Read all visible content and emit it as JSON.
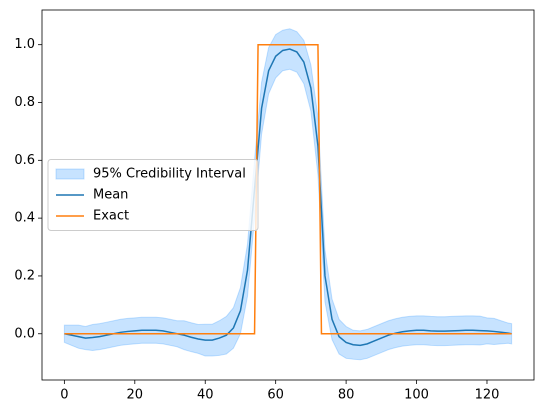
{
  "chart_data": {
    "type": "line",
    "xlim": [
      -6.35,
      133.35
    ],
    "ylim": [
      -0.16,
      1.12
    ],
    "xticks": [
      0,
      20,
      40,
      60,
      80,
      100,
      120
    ],
    "yticks": [
      {
        "value": 0,
        "label": "0.0"
      },
      0.2,
      0.4,
      0.6,
      0.8,
      {
        "value": 1,
        "label": "1.0"
      }
    ],
    "grid": false,
    "legend": "center left",
    "series": [
      {
        "name": "95% Credibility Interval",
        "type": "band",
        "color": "#1e90ff",
        "alpha": 0.25,
        "x": [
          0,
          2,
          4,
          6,
          8,
          10,
          12,
          14,
          16,
          18,
          20,
          22,
          24,
          26,
          28,
          30,
          32,
          34,
          36,
          38,
          40,
          42,
          44,
          46,
          48,
          50,
          52,
          54,
          56,
          58,
          60,
          62,
          64,
          66,
          68,
          70,
          72,
          74,
          76,
          78,
          80,
          82,
          84,
          86,
          88,
          90,
          92,
          94,
          96,
          98,
          100,
          102,
          104,
          106,
          108,
          110,
          112,
          114,
          116,
          118,
          120,
          122,
          124,
          126,
          127
        ],
        "upper": [
          0.03,
          0.03,
          0.03,
          0.025,
          0.032,
          0.035,
          0.04,
          0.045,
          0.05,
          0.053,
          0.055,
          0.057,
          0.057,
          0.057,
          0.055,
          0.05,
          0.045,
          0.045,
          0.038,
          0.032,
          0.033,
          0.033,
          0.045,
          0.06,
          0.09,
          0.16,
          0.31,
          0.6,
          0.87,
          0.99,
          1.035,
          1.05,
          1.055,
          1.045,
          1.015,
          0.93,
          0.75,
          0.29,
          0.12,
          0.05,
          0.025,
          0.012,
          0.01,
          0.015,
          0.025,
          0.035,
          0.045,
          0.052,
          0.057,
          0.06,
          0.062,
          0.062,
          0.06,
          0.059,
          0.059,
          0.06,
          0.061,
          0.062,
          0.062,
          0.061,
          0.055,
          0.053,
          0.045,
          0.037,
          0.035
        ],
        "lower": [
          -0.03,
          -0.04,
          -0.05,
          -0.055,
          -0.058,
          -0.055,
          -0.05,
          -0.045,
          -0.04,
          -0.037,
          -0.035,
          -0.033,
          -0.033,
          -0.033,
          -0.035,
          -0.04,
          -0.045,
          -0.055,
          -0.062,
          -0.068,
          -0.077,
          -0.077,
          -0.075,
          -0.07,
          -0.05,
          0,
          0.13,
          0.4,
          0.69,
          0.83,
          0.885,
          0.91,
          0.915,
          0.905,
          0.865,
          0.77,
          0.55,
          0.11,
          -0.02,
          -0.07,
          -0.085,
          -0.088,
          -0.09,
          -0.085,
          -0.075,
          -0.065,
          -0.055,
          -0.048,
          -0.043,
          -0.04,
          -0.038,
          -0.038,
          -0.04,
          -0.041,
          -0.041,
          -0.04,
          -0.039,
          -0.038,
          -0.038,
          -0.039,
          -0.035,
          -0.037,
          -0.035,
          -0.033,
          -0.035
        ]
      },
      {
        "name": "Mean",
        "type": "line",
        "color": "#1f77b4",
        "x": [
          0,
          2,
          4,
          6,
          8,
          10,
          12,
          14,
          16,
          18,
          20,
          22,
          24,
          26,
          28,
          30,
          32,
          34,
          36,
          38,
          40,
          42,
          44,
          46,
          48,
          50,
          52,
          54,
          56,
          58,
          60,
          62,
          64,
          66,
          68,
          70,
          72,
          74,
          76,
          78,
          80,
          82,
          84,
          86,
          88,
          90,
          92,
          94,
          96,
          98,
          100,
          102,
          104,
          106,
          108,
          110,
          112,
          114,
          116,
          118,
          120,
          122,
          124,
          126,
          127
        ],
        "values": [
          0,
          -0.005,
          -0.01,
          -0.015,
          -0.013,
          -0.01,
          -0.005,
          0,
          0.005,
          0.008,
          0.01,
          0.012,
          0.012,
          0.012,
          0.01,
          0.005,
          0,
          -0.005,
          -0.012,
          -0.018,
          -0.022,
          -0.022,
          -0.015,
          -0.005,
          0.02,
          0.08,
          0.22,
          0.5,
          0.78,
          0.91,
          0.96,
          0.98,
          0.985,
          0.975,
          0.94,
          0.85,
          0.65,
          0.2,
          0.05,
          -0.01,
          -0.03,
          -0.038,
          -0.04,
          -0.035,
          -0.025,
          -0.015,
          -0.005,
          0.002,
          0.007,
          0.01,
          0.012,
          0.012,
          0.01,
          0.009,
          0.009,
          0.01,
          0.011,
          0.012,
          0.012,
          0.011,
          0.01,
          0.008,
          0.005,
          0.002,
          0
        ]
      },
      {
        "name": "Exact",
        "type": "line",
        "color": "#ff7f0e",
        "x": [
          0,
          54,
          55,
          72,
          73,
          127
        ],
        "values": [
          0,
          0,
          1,
          1,
          0,
          0
        ]
      }
    ]
  }
}
